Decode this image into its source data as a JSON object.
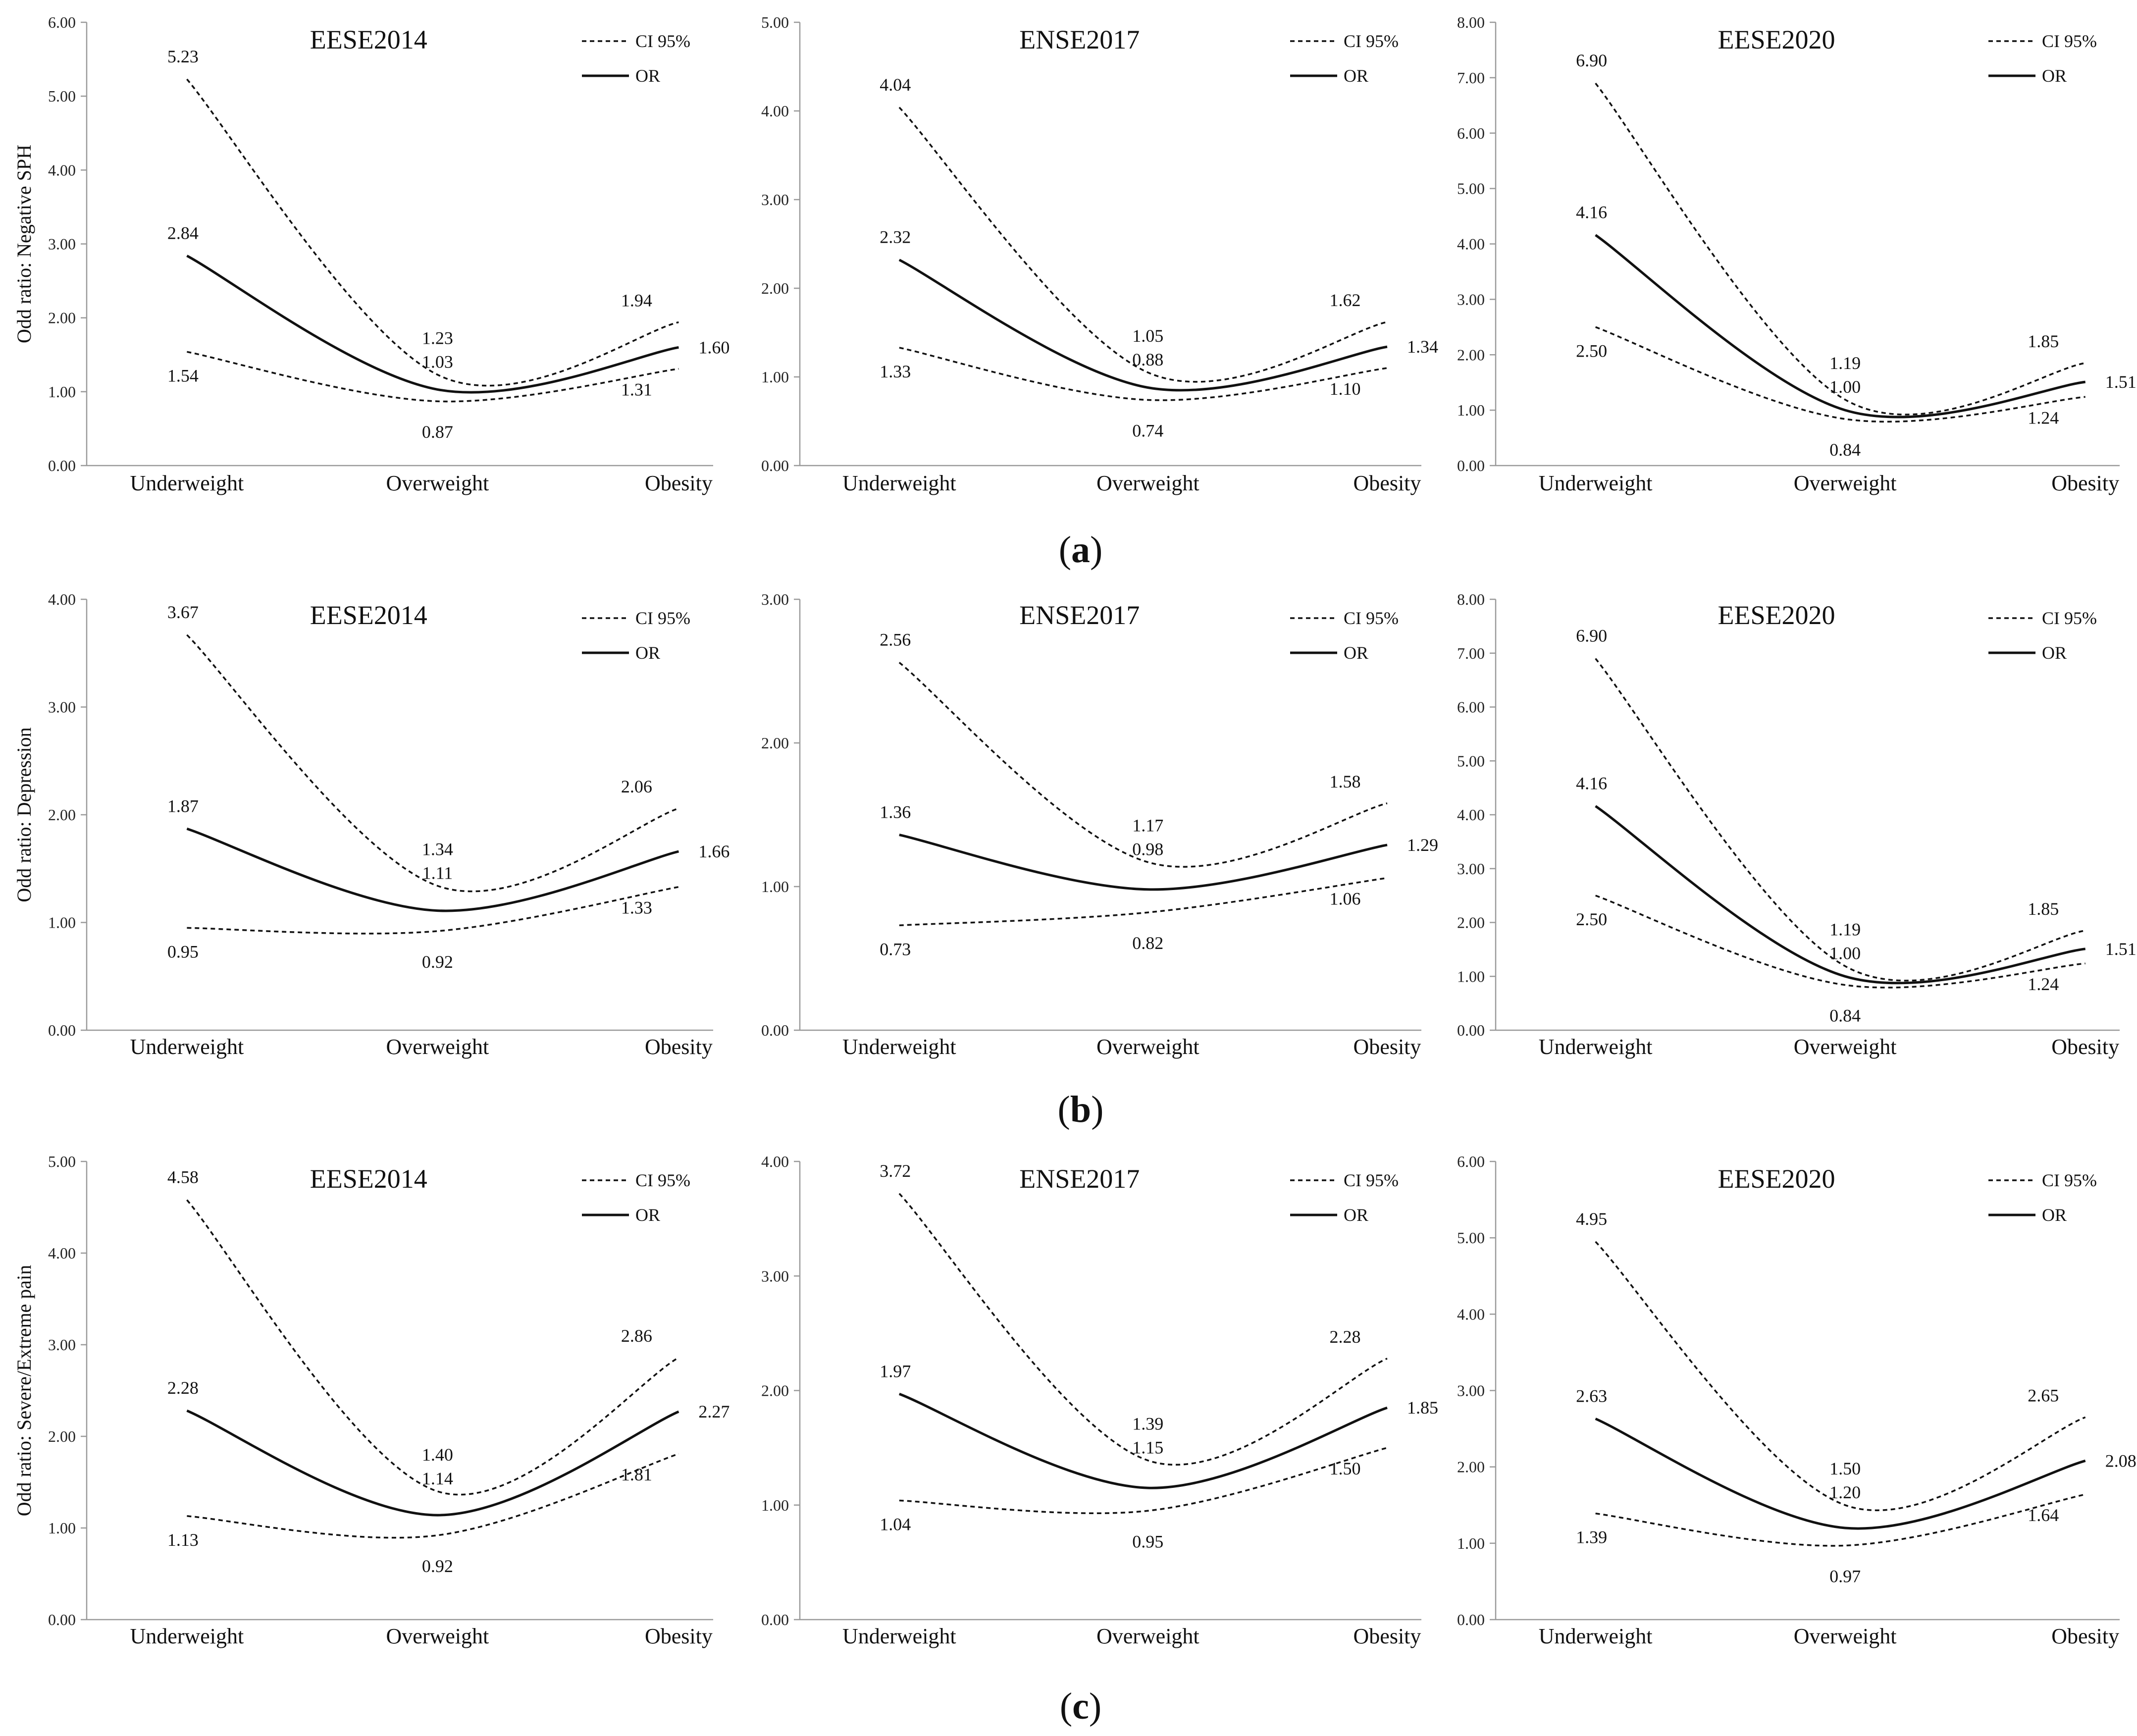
{
  "panel_labels": [
    {
      "open": "(",
      "letter": "a",
      "close": ")"
    },
    {
      "open": "(",
      "letter": "b",
      "close": ")"
    },
    {
      "open": "(",
      "letter": "c",
      "close": ")"
    }
  ],
  "chart_data": [
    {
      "type": "line",
      "title": "EESE2014",
      "ylabel": "Odd ratio: Negative SPH",
      "ylim": [
        0,
        6
      ],
      "ystep": 1,
      "categories": [
        "Underweight",
        "Overweight",
        "Obesity"
      ],
      "series": [
        {
          "name": "CI 95%",
          "role": "upper",
          "values": [
            5.23,
            1.23,
            1.94
          ],
          "labels": [
            "5.23",
            "1.23",
            "1.94"
          ]
        },
        {
          "name": "OR",
          "role": "or",
          "values": [
            2.84,
            1.03,
            1.6
          ],
          "labels": [
            "2.84",
            "1.03",
            "1.60"
          ]
        },
        {
          "name": "CI 95%",
          "role": "lower",
          "values": [
            1.54,
            0.87,
            1.31
          ],
          "labels": [
            "1.54",
            "0.87",
            "1.31"
          ]
        }
      ],
      "legend": [
        "CI 95%",
        "OR"
      ],
      "legend_position": "top-right"
    },
    {
      "type": "line",
      "title": "ENSE2017",
      "ylabel": "",
      "ylim": [
        0,
        5
      ],
      "ystep": 1,
      "categories": [
        "Underweight",
        "Overweight",
        "Obesity"
      ],
      "series": [
        {
          "name": "CI 95%",
          "role": "upper",
          "values": [
            4.04,
            1.05,
            1.62
          ],
          "labels": [
            "4.04",
            "1.05",
            "1.62"
          ]
        },
        {
          "name": "OR",
          "role": "or",
          "values": [
            2.32,
            0.88,
            1.34
          ],
          "labels": [
            "2.32",
            "0.88",
            "1.34"
          ]
        },
        {
          "name": "CI 95%",
          "role": "lower",
          "values": [
            1.33,
            0.74,
            1.1
          ],
          "labels": [
            "1.33",
            "0.74",
            "1.10"
          ]
        }
      ],
      "legend": [
        "CI 95%",
        "OR"
      ],
      "legend_position": "top-right"
    },
    {
      "type": "line",
      "title": "EESE2020",
      "ylabel": "",
      "ylim": [
        0,
        8
      ],
      "ystep": 1,
      "categories": [
        "Underweight",
        "Overweight",
        "Obesity"
      ],
      "series": [
        {
          "name": "CI 95%",
          "role": "upper",
          "values": [
            6.9,
            1.19,
            1.85
          ],
          "labels": [
            "6.90",
            "1.19",
            "1.85"
          ]
        },
        {
          "name": "OR",
          "role": "or",
          "values": [
            4.16,
            1.0,
            1.51
          ],
          "labels": [
            "4.16",
            "1.00",
            "1.51"
          ]
        },
        {
          "name": "CI 95%",
          "role": "lower",
          "values": [
            2.5,
            0.84,
            1.24
          ],
          "labels": [
            "2.50",
            "0.84",
            "1.24"
          ]
        }
      ],
      "legend": [
        "CI 95%",
        "OR"
      ],
      "legend_position": "top-right"
    },
    {
      "type": "line",
      "title": "EESE2014",
      "ylabel": "Odd ratio: Depression",
      "ylim": [
        0,
        4
      ],
      "ystep": 1,
      "categories": [
        "Underweight",
        "Overweight",
        "Obesity"
      ],
      "series": [
        {
          "name": "CI 95%",
          "role": "upper",
          "values": [
            3.67,
            1.34,
            2.06
          ],
          "labels": [
            "3.67",
            "1.34",
            "2.06"
          ]
        },
        {
          "name": "OR",
          "role": "or",
          "values": [
            1.87,
            1.11,
            1.66
          ],
          "labels": [
            "1.87",
            "1.11",
            "1.66"
          ]
        },
        {
          "name": "CI 95%",
          "role": "lower",
          "values": [
            0.95,
            0.92,
            1.33
          ],
          "labels": [
            "0.95",
            "0.92",
            "1.33"
          ]
        }
      ],
      "legend": [
        "CI 95%",
        "OR"
      ],
      "legend_position": "top-right"
    },
    {
      "type": "line",
      "title": "ENSE2017",
      "ylabel": "",
      "ylim": [
        0,
        3
      ],
      "ystep": 1,
      "categories": [
        "Underweight",
        "Overweight",
        "Obesity"
      ],
      "series": [
        {
          "name": "CI 95%",
          "role": "upper",
          "values": [
            2.56,
            1.17,
            1.58
          ],
          "labels": [
            "2.56",
            "1.17",
            "1.58"
          ]
        },
        {
          "name": "OR",
          "role": "or",
          "values": [
            1.36,
            0.98,
            1.29
          ],
          "labels": [
            "1.36",
            "0.98",
            "1.29"
          ]
        },
        {
          "name": "CI 95%",
          "role": "lower",
          "values": [
            0.73,
            0.82,
            1.06
          ],
          "labels": [
            "0.73",
            "0.82",
            "1.06"
          ]
        }
      ],
      "legend": [
        "CI 95%",
        "OR"
      ],
      "legend_position": "top-right"
    },
    {
      "type": "line",
      "title": "EESE2020",
      "ylabel": "",
      "ylim": [
        0,
        8
      ],
      "ystep": 1,
      "categories": [
        "Underweight",
        "Overweight",
        "Obesity"
      ],
      "series": [
        {
          "name": "CI 95%",
          "role": "upper",
          "values": [
            6.9,
            1.19,
            1.85
          ],
          "labels": [
            "6.90",
            "1.19",
            "1.85"
          ]
        },
        {
          "name": "OR",
          "role": "or",
          "values": [
            4.16,
            1.0,
            1.51
          ],
          "labels": [
            "4.16",
            "1.00",
            "1.51"
          ]
        },
        {
          "name": "CI 95%",
          "role": "lower",
          "values": [
            2.5,
            0.84,
            1.24
          ],
          "labels": [
            "2.50",
            "0.84",
            "1.24"
          ]
        }
      ],
      "legend": [
        "CI 95%",
        "OR"
      ],
      "legend_position": "top-right"
    },
    {
      "type": "line",
      "title": "EESE2014",
      "ylabel": "Odd ratio: Severe/Extreme pain",
      "ylim": [
        0,
        5
      ],
      "ystep": 1,
      "categories": [
        "Underweight",
        "Overweight",
        "Obesity"
      ],
      "series": [
        {
          "name": "CI 95%",
          "role": "upper",
          "values": [
            4.58,
            1.4,
            2.86
          ],
          "labels": [
            "4.58",
            "1.40",
            "2.86"
          ]
        },
        {
          "name": "OR",
          "role": "or",
          "values": [
            2.28,
            1.14,
            2.27
          ],
          "labels": [
            "2.28",
            "1.14",
            "2.27"
          ]
        },
        {
          "name": "CI 95%",
          "role": "lower",
          "values": [
            1.13,
            0.92,
            1.81
          ],
          "labels": [
            "1.13",
            "0.92",
            "1.81"
          ]
        }
      ],
      "legend": [
        "CI 95%",
        "OR"
      ],
      "legend_position": "top-right"
    },
    {
      "type": "line",
      "title": "ENSE2017",
      "ylabel": "",
      "ylim": [
        0,
        4
      ],
      "ystep": 1,
      "categories": [
        "Underweight",
        "Overweight",
        "Obesity"
      ],
      "series": [
        {
          "name": "CI 95%",
          "role": "upper",
          "values": [
            3.72,
            1.39,
            2.28
          ],
          "labels": [
            "3.72",
            "1.39",
            "2.28"
          ]
        },
        {
          "name": "OR",
          "role": "or",
          "values": [
            1.97,
            1.15,
            1.85
          ],
          "labels": [
            "1.97",
            "1.15",
            "1.85"
          ]
        },
        {
          "name": "CI 95%",
          "role": "lower",
          "values": [
            1.04,
            0.95,
            1.5
          ],
          "labels": [
            "1.04",
            "0.95",
            "1.50"
          ]
        }
      ],
      "legend": [
        "CI 95%",
        "OR"
      ],
      "legend_position": "top-right"
    },
    {
      "type": "line",
      "title": "EESE2020",
      "ylabel": "",
      "ylim": [
        0,
        6
      ],
      "ystep": 1,
      "categories": [
        "Underweight",
        "Overweight",
        "Obesity"
      ],
      "series": [
        {
          "name": "CI 95%",
          "role": "upper",
          "values": [
            4.95,
            1.5,
            2.65
          ],
          "labels": [
            "4.95",
            "1.50",
            "2.65"
          ]
        },
        {
          "name": "OR",
          "role": "or",
          "values": [
            2.63,
            1.2,
            2.08
          ],
          "labels": [
            "2.63",
            "1.20",
            "2.08"
          ]
        },
        {
          "name": "CI 95%",
          "role": "lower",
          "values": [
            1.39,
            0.97,
            1.64
          ],
          "labels": [
            "1.39",
            "0.97",
            "1.64"
          ]
        }
      ],
      "legend": [
        "CI 95%",
        "OR"
      ],
      "legend_position": "top-right"
    }
  ]
}
